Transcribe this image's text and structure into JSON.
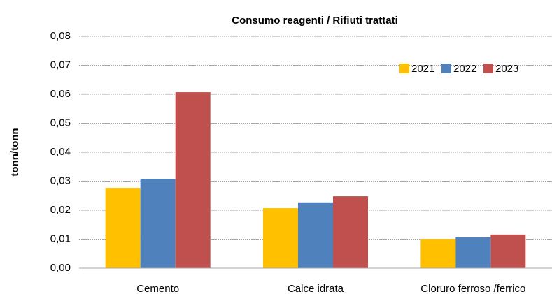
{
  "chart_data": {
    "type": "bar",
    "title": "Consumo reagenti / Rifiuti trattati",
    "y_label": "tonn/tonn",
    "categories": [
      "Cemento",
      "Calce idrata",
      "Cloruro ferroso /ferrico"
    ],
    "series": [
      {
        "name": "2021",
        "color": "#ffc000",
        "values": [
          0.0277,
          0.0207,
          0.0101
        ]
      },
      {
        "name": "2022",
        "color": "#4f81bd",
        "values": [
          0.0308,
          0.0227,
          0.0106
        ]
      },
      {
        "name": "2023",
        "color": "#c0504d",
        "values": [
          0.0607,
          0.0248,
          0.0116
        ]
      }
    ],
    "ylim": [
      0,
      0.08
    ],
    "yticks": [
      {
        "value": 0,
        "label": "0,00"
      },
      {
        "value": 0.01,
        "label": "0,01"
      },
      {
        "value": 0.02,
        "label": "0,02"
      },
      {
        "value": 0.03,
        "label": "0,03"
      },
      {
        "value": 0.04,
        "label": "0,04"
      },
      {
        "value": 0.05,
        "label": "0,05"
      },
      {
        "value": 0.06,
        "label": "0,06"
      },
      {
        "value": 0.07,
        "label": "0,07"
      },
      {
        "value": 0.08,
        "label": "0,08"
      }
    ],
    "grid": true,
    "legend": "upper right"
  }
}
